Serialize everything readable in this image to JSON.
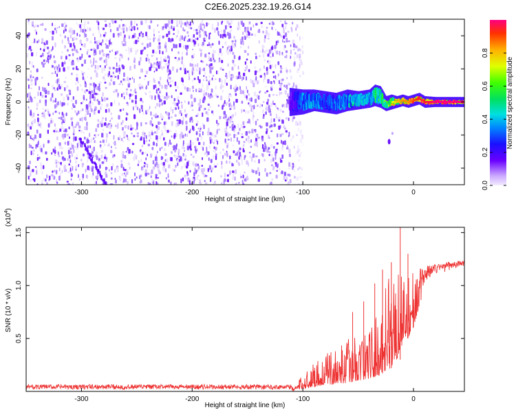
{
  "title": "C2E6.2025.232.19.26.G14",
  "chart_data": [
    {
      "type": "heatmap",
      "name": "spectrogram",
      "xlabel": "Height of straight line (km)",
      "ylabel": "Frequency (Hz)",
      "xlim": [
        -350,
        46
      ],
      "ylim": [
        -50,
        50
      ],
      "xticks": [
        -300,
        -200,
        -100,
        0
      ],
      "yticks": [
        -40,
        -20,
        0,
        20,
        40
      ],
      "xtick_labels": [
        "-300",
        "-200",
        "-100",
        "0"
      ],
      "ytick_labels": [
        "-40",
        "-20",
        "0",
        "20",
        "40"
      ],
      "noise_region_x": [
        -350,
        -108
      ],
      "signal_track": {
        "x": [
          -112,
          -100,
          -90,
          -80,
          -70,
          -60,
          -50,
          -40,
          -35,
          -30,
          -25,
          -20,
          -15,
          -10,
          -5,
          0,
          5,
          10,
          20,
          30,
          46
        ],
        "freq": [
          0,
          0,
          1,
          0,
          -1,
          1,
          1,
          2,
          4,
          3,
          -1,
          0,
          0,
          1,
          0,
          1,
          2,
          0,
          0,
          0,
          0
        ],
        "amplitude": [
          0.15,
          0.35,
          0.4,
          0.3,
          0.35,
          0.4,
          0.45,
          0.45,
          0.55,
          0.5,
          0.6,
          0.7,
          0.8,
          0.85,
          0.85,
          0.9,
          0.95,
          0.95,
          1.0,
          1.0,
          1.0
        ],
        "width_hz": [
          7,
          6,
          5,
          5,
          5,
          5,
          4,
          4,
          5,
          5,
          3,
          3,
          2,
          2,
          2,
          2,
          2,
          2,
          1.5,
          1.5,
          1.5
        ]
      },
      "outlier": {
        "x": -22,
        "freq": -24
      }
    },
    {
      "type": "colorbar",
      "label": "Normalized spectral amplitude",
      "range": [
        0.0,
        1.0
      ],
      "ticks": [
        0.0,
        0.2,
        0.4,
        0.6,
        0.8
      ],
      "tick_labels": [
        "0.0",
        "0.2",
        "0.4",
        "0.6",
        "0.8"
      ]
    },
    {
      "type": "line",
      "name": "snr",
      "color": "#ee3333",
      "xlabel": "Height of straight line (km)",
      "ylabel": "SNR (10 * v/v)",
      "scale_label": "(x10",
      "scale_exponent": "4",
      "scale_close": ")",
      "xlim": [
        -350,
        46
      ],
      "ylim": [
        0,
        1.55
      ],
      "xticks": [
        -300,
        -200,
        -100,
        0
      ],
      "yticks": [
        0.5,
        1.0,
        1.5
      ],
      "xtick_labels": [
        "-300",
        "-200",
        "-100",
        "0"
      ],
      "ytick_labels": [
        "0.5",
        "1.0",
        "1.5"
      ],
      "envelope": {
        "x": [
          -350,
          -110,
          -100,
          -90,
          -80,
          -70,
          -60,
          -50,
          -40,
          -30,
          -25,
          -20,
          -15,
          -12,
          -10,
          -5,
          0,
          5,
          10,
          15,
          20,
          30,
          46
        ],
        "lo": [
          0.0,
          0.0,
          0.02,
          0.04,
          0.06,
          0.07,
          0.08,
          0.1,
          0.12,
          0.15,
          0.2,
          0.22,
          0.3,
          0.3,
          0.45,
          0.5,
          0.6,
          0.8,
          0.95,
          1.05,
          1.1,
          1.13,
          1.18
        ],
        "hi": [
          0.05,
          0.05,
          0.15,
          0.3,
          0.35,
          0.4,
          0.5,
          0.55,
          0.6,
          0.8,
          1.05,
          1.15,
          1.25,
          1.55,
          1.1,
          1.15,
          1.15,
          1.15,
          1.18,
          1.2,
          1.2,
          1.22,
          1.24
        ]
      },
      "spikes": [
        {
          "x": -55,
          "y": 0.75
        },
        {
          "x": -45,
          "y": 0.85
        },
        {
          "x": -35,
          "y": 1.02
        },
        {
          "x": -28,
          "y": 1.15
        },
        {
          "x": -20,
          "y": 1.22
        },
        {
          "x": -12,
          "y": 1.55
        },
        {
          "x": -5,
          "y": 1.3
        }
      ]
    }
  ]
}
